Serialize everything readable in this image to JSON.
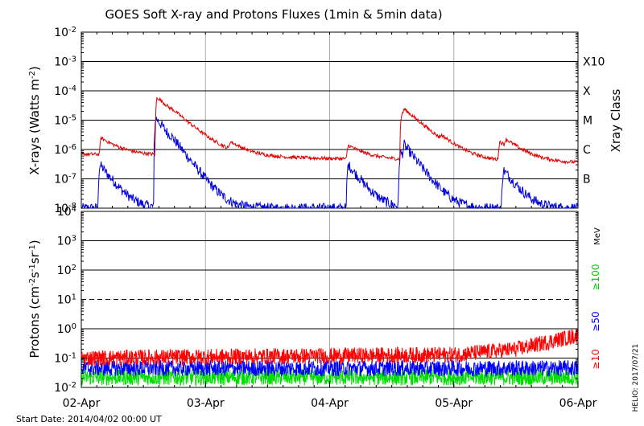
{
  "title": "GOES Soft X-ray and Protons Fluxes   (1min & 5min data)",
  "start_date": "Start Date: 2014/04/02 00:00 UT",
  "credit": "HELIO: 2017/07/21",
  "colors": {
    "xray_long": "#dd0000",
    "xray_short": "#0000dd",
    "p10": "#ff0000",
    "p50": "#0000ff",
    "p100": "#00dd00",
    "axis": "#000000",
    "grid": "#aaaaaa"
  },
  "chart_data": [
    {
      "type": "line",
      "panel": "xrays",
      "ylabel": "X-rays (Watts m-2)",
      "yscale": "log",
      "ylim": [
        1e-08,
        0.01
      ],
      "y_ticks": [
        "10-8",
        "10-7",
        "10-6",
        "10-5",
        "10-4",
        "10-3",
        "10-2"
      ],
      "right_axis_label": "Xray Class",
      "class_labels": [
        "B",
        "C",
        "M",
        "X",
        "X10"
      ],
      "x_ticks": [
        "02-Apr",
        "03-Apr",
        "04-Apr",
        "05-Apr",
        "06-Apr"
      ],
      "xlim": [
        "2014-04-02",
        "2014-04-06"
      ],
      "grid": true,
      "series": [
        {
          "color": "red",
          "baseline": 7e-07,
          "end": 3.5e-07,
          "peaks": [
            [
              0.16,
              2.5e-06
            ],
            [
              0.61,
              6e-05
            ],
            [
              0.73,
              2.8e-06
            ],
            [
              1.2,
              1.4e-06
            ],
            [
              2.15,
              1.4e-06
            ],
            [
              2.58,
              1.6e-05
            ],
            [
              2.6,
              1.1e-05
            ],
            [
              2.9,
              1.2e-06
            ],
            [
              3.37,
              1.8e-06
            ],
            [
              3.42,
              1.3e-06
            ]
          ]
        },
        {
          "color": "blue",
          "baseline": 1e-08,
          "peaks": [
            [
              0.15,
              3e-07
            ],
            [
              0.6,
              1.2e-05
            ],
            [
              0.72,
              4e-07
            ],
            [
              2.15,
              3e-07
            ],
            [
              2.57,
              8e-07
            ],
            [
              2.6,
              9e-07
            ],
            [
              3.4,
              2e-07
            ]
          ]
        }
      ]
    },
    {
      "type": "line",
      "panel": "protons",
      "ylabel": "Protons (cm-2s-1sr-1)",
      "yscale": "log",
      "ylim": [
        0.01,
        10000
      ],
      "y_ticks": [
        "10-2",
        "10-1",
        "100",
        "101",
        "102",
        "103",
        "104"
      ],
      "units": "MeV",
      "x_ticks": [
        "02-Apr",
        "03-Apr",
        "04-Apr",
        "05-Apr",
        "06-Apr"
      ],
      "xlim": [
        "2014-04-02",
        "2014-04-06"
      ],
      "dashed_threshold": 10,
      "series": [
        {
          "name": "≥10",
          "color": "red",
          "x": [
            "2014-04-02",
            "2014-04-03",
            "2014-04-04",
            "2014-04-05",
            "2014-04-05 12:00",
            "2014-04-06"
          ],
          "y": [
            0.1,
            0.11,
            0.12,
            0.13,
            0.2,
            0.6
          ]
        },
        {
          "name": "≥50",
          "color": "blue",
          "x": [
            "2014-04-02",
            "2014-04-06"
          ],
          "y": [
            0.045,
            0.045
          ]
        },
        {
          "name": "≥100",
          "color": "green",
          "x": [
            "2014-04-02",
            "2014-04-06"
          ],
          "y": [
            0.022,
            0.022
          ]
        }
      ]
    }
  ]
}
